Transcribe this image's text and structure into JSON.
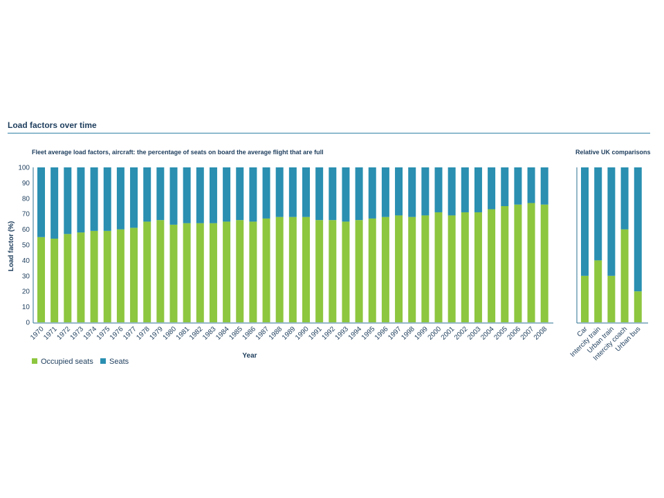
{
  "page": {
    "title": "Load factors over time"
  },
  "colors": {
    "occupied": "#8dc63f",
    "seats": "#2a8fb1",
    "rule": "#2f7fa6",
    "text": "#1d3d5c"
  },
  "chart_data": [
    {
      "type": "bar",
      "stacked": true,
      "title": "Fleet average load factors, aircraft: the percentage of seats on board the average flight that are full",
      "xlabel": "Year",
      "ylabel": "Load factor (%)",
      "ylim": [
        0,
        100
      ],
      "yticks": [
        0,
        10,
        20,
        30,
        40,
        50,
        60,
        70,
        80,
        90,
        100
      ],
      "categories": [
        "1970",
        "1971",
        "1972",
        "1973",
        "1974",
        "1975",
        "1976",
        "1977",
        "1978",
        "1979",
        "1980",
        "1981",
        "1982",
        "1983",
        "1984",
        "1985",
        "1986",
        "1987",
        "1988",
        "1989",
        "1990",
        "1991",
        "1992",
        "1993",
        "1994",
        "1995",
        "1996",
        "1997",
        "1998",
        "1999",
        "2000",
        "2001",
        "2002",
        "2003",
        "2004",
        "2005",
        "2006",
        "2007",
        "2008"
      ],
      "series": [
        {
          "name": "Occupied seats",
          "color": "#8dc63f",
          "values": [
            55,
            54,
            57,
            58,
            59,
            59,
            60,
            61,
            65,
            66,
            63,
            64,
            64,
            64,
            65,
            66,
            65,
            67,
            68,
            68,
            68,
            66,
            66,
            65,
            66,
            67,
            68,
            69,
            68,
            69,
            71,
            69,
            71,
            71,
            73,
            75,
            76,
            77,
            76
          ]
        },
        {
          "name": "Seats",
          "color": "#2a8fb1",
          "values": [
            45,
            46,
            43,
            42,
            41,
            41,
            40,
            39,
            35,
            34,
            37,
            36,
            36,
            36,
            35,
            34,
            35,
            33,
            32,
            32,
            32,
            34,
            34,
            35,
            34,
            33,
            32,
            31,
            32,
            31,
            29,
            31,
            29,
            29,
            27,
            25,
            24,
            23,
            24
          ]
        }
      ],
      "legend": {
        "position": "bottom-left",
        "entries": [
          "Occupied seats",
          "Seats"
        ]
      },
      "grid": false
    },
    {
      "type": "bar",
      "stacked": true,
      "title": "Relative UK comparisons",
      "ylim": [
        0,
        100
      ],
      "categories": [
        "Car",
        "Intercity train",
        "Urban train",
        "Intercity coach",
        "Urban bus"
      ],
      "series": [
        {
          "name": "Occupied seats",
          "color": "#8dc63f",
          "values": [
            30,
            40,
            30,
            60,
            20
          ]
        },
        {
          "name": "Seats",
          "color": "#2a8fb1",
          "values": [
            70,
            60,
            70,
            40,
            80
          ]
        }
      ],
      "grid": false
    }
  ]
}
